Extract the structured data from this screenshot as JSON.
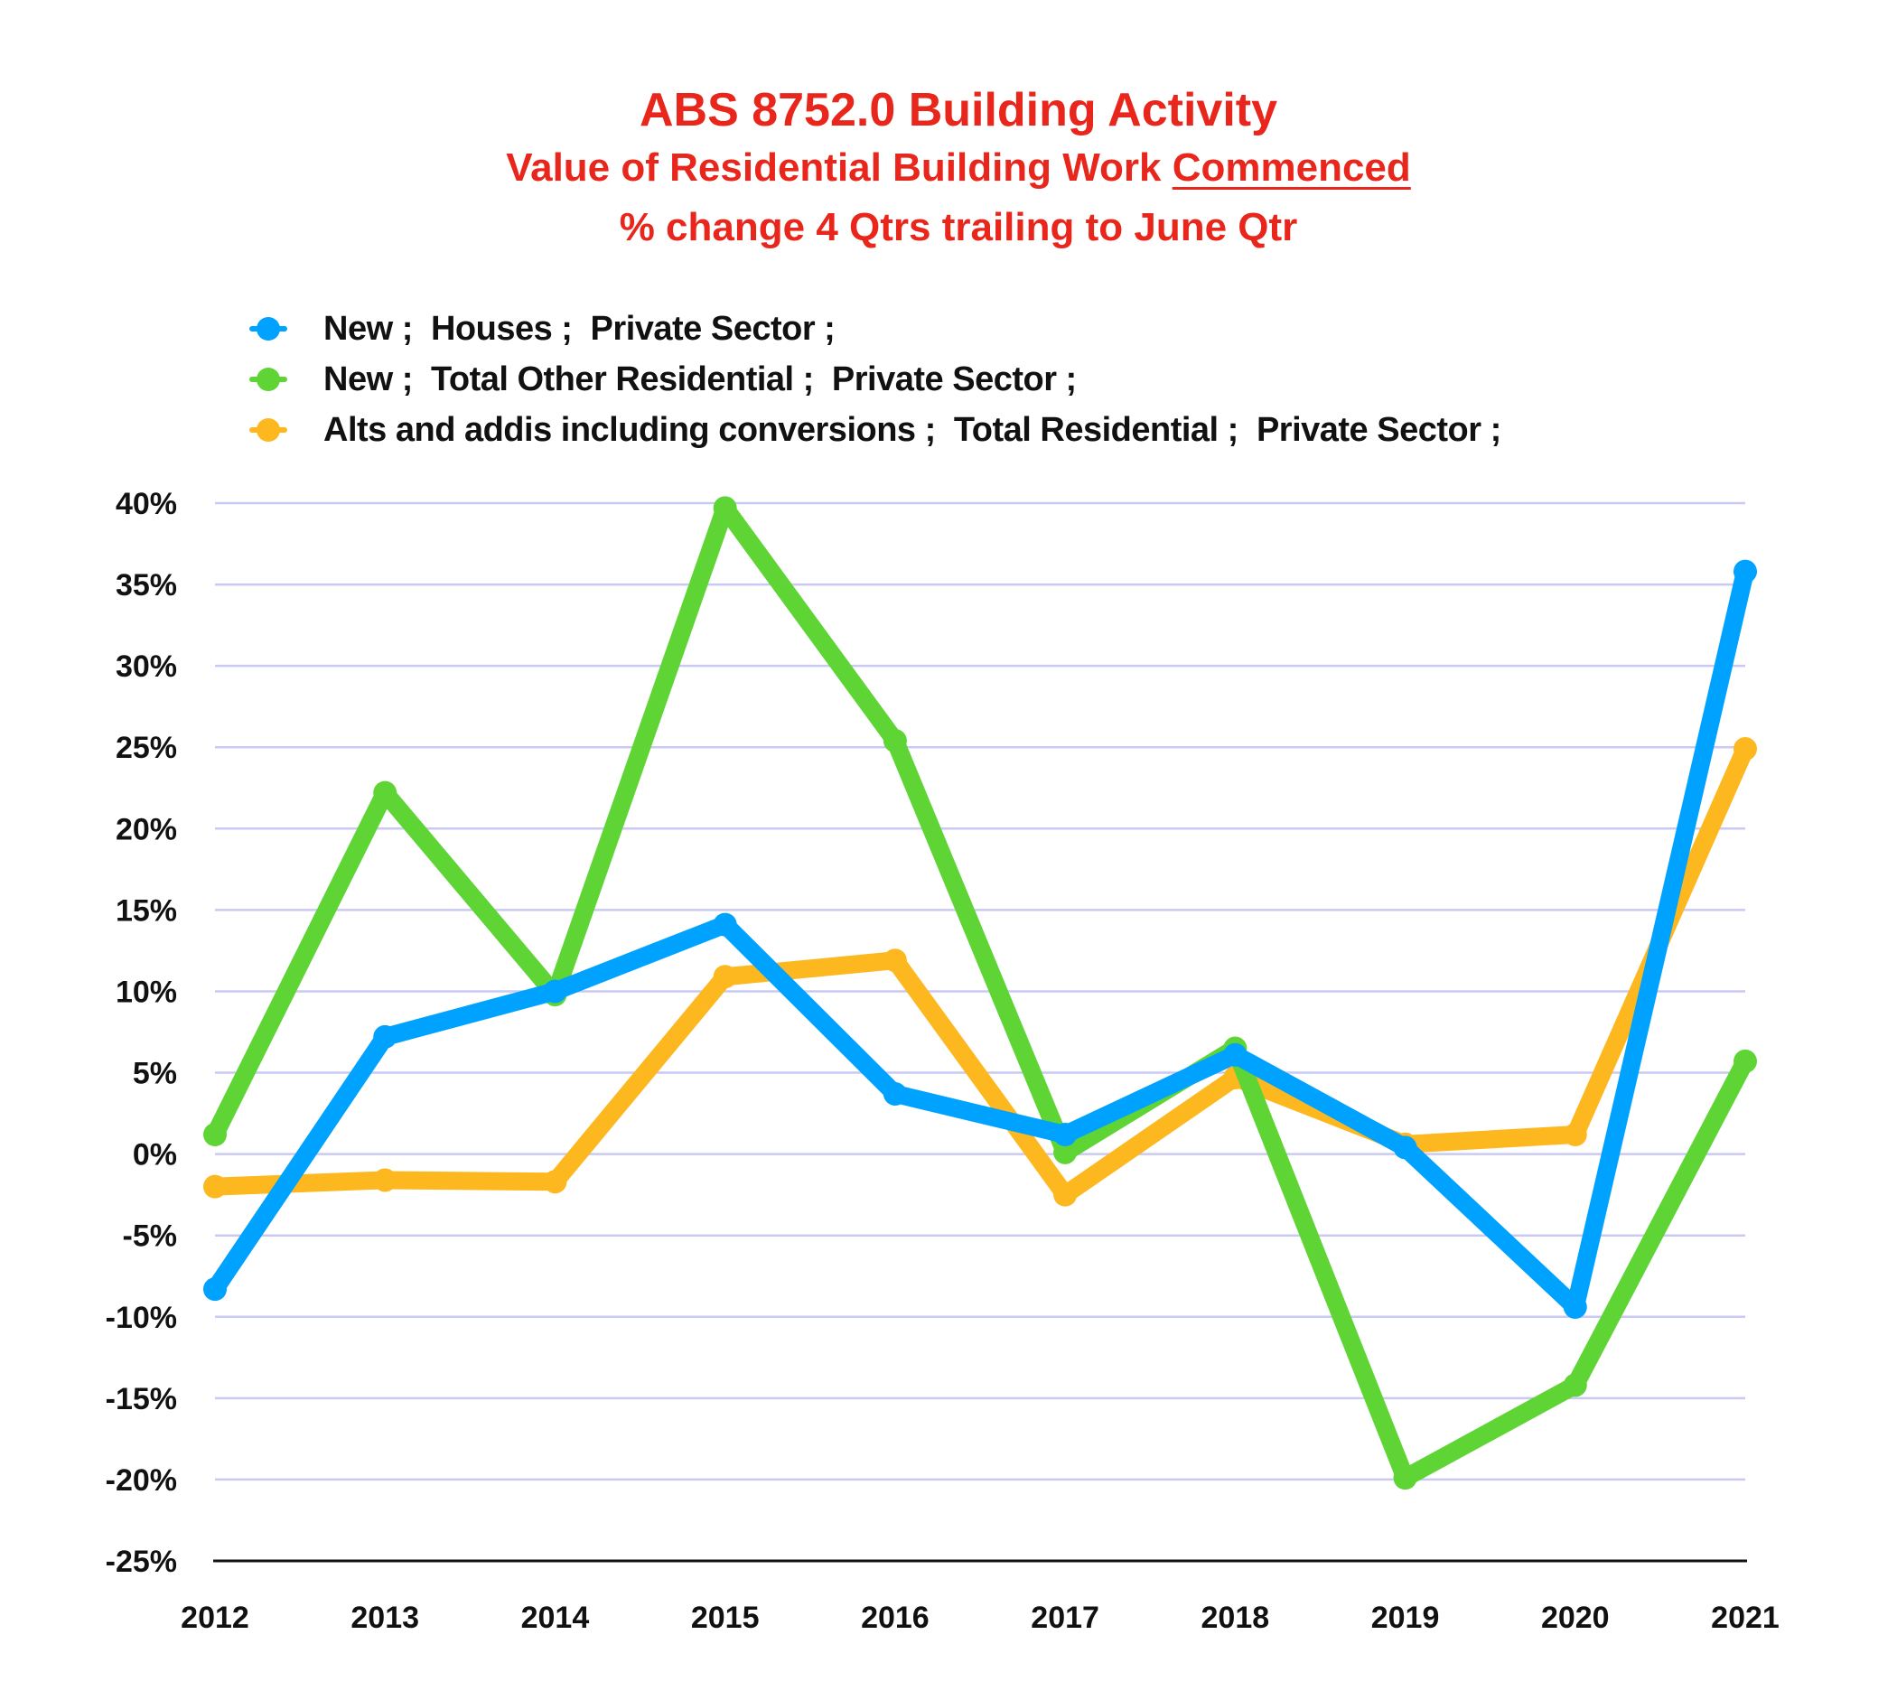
{
  "chart_data": {
    "type": "line",
    "title": "ABS 8752.0 Building Activity",
    "subtitle_prefix": "Value of Residential Building Work",
    "subtitle_emphasis": "Commenced",
    "subtitle2": "% change 4 Qtrs trailing to June Qtr",
    "xlabel": "",
    "ylabel": "",
    "categories": [
      "2012",
      "2013",
      "2014",
      "2015",
      "2016",
      "2017",
      "2018",
      "2019",
      "2020",
      "2021"
    ],
    "ylim": [
      -25,
      40
    ],
    "yticks": [
      40,
      35,
      30,
      25,
      20,
      15,
      10,
      5,
      0,
      -5,
      -10,
      -15,
      -20,
      -25
    ],
    "ytick_labels": [
      "40%",
      "35%",
      "30%",
      "25%",
      "20%",
      "15%",
      "10%",
      "5%",
      "0%",
      "-5%",
      "-10%",
      "-15%",
      "-20%",
      "-25%"
    ],
    "grid": true,
    "legend_position": "top-left",
    "series": [
      {
        "name": "New ;  Houses ;  Private Sector ;",
        "color": "#00a2ff",
        "values": [
          -8.3,
          7.2,
          10.0,
          14.1,
          3.7,
          1.2,
          6.1,
          0.4,
          -9.4,
          35.8
        ]
      },
      {
        "name": "New ;  Total Other Residential ;  Private Sector ;",
        "color": "#5ed535",
        "values": [
          1.2,
          22.2,
          9.8,
          39.7,
          25.4,
          0.1,
          6.5,
          -19.9,
          -14.2,
          5.7
        ]
      },
      {
        "name": "Alts and addis including conversions ;  Total Residential ;  Private Sector ;",
        "color": "#fdb71f",
        "values": [
          -2.0,
          -1.6,
          -1.7,
          10.9,
          11.9,
          -2.5,
          4.7,
          0.6,
          1.2,
          24.9
        ]
      }
    ]
  },
  "colors": {
    "title": "#e8261c",
    "grid": "#c9c9f4",
    "axis": "#111111"
  }
}
